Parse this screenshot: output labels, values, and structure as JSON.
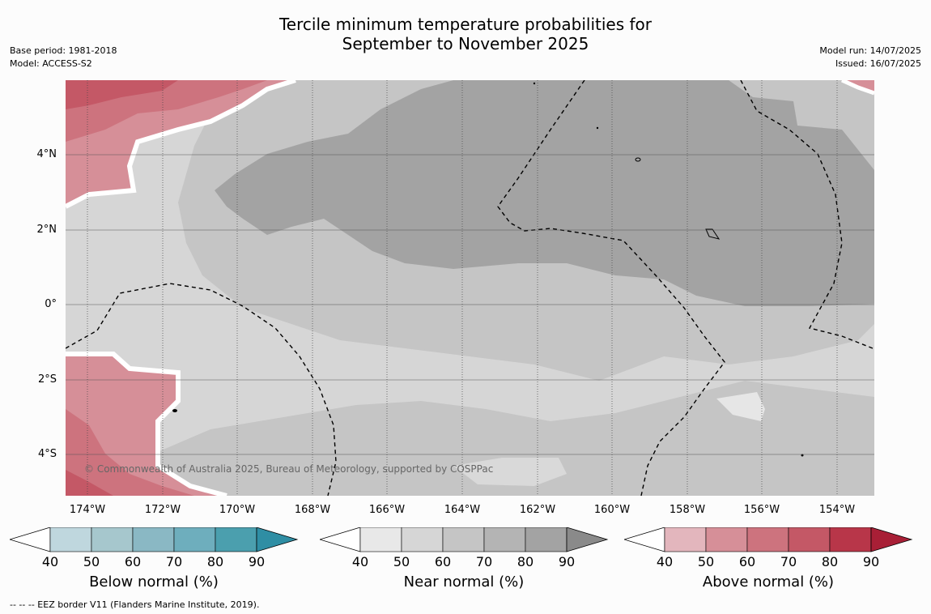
{
  "title_line1": "Tercile minimum temperature probabilities for",
  "title_line2": "September to November 2025",
  "meta_left": {
    "base_period": "Base period: 1981-2018",
    "model": "Model: ACCESS-S2"
  },
  "meta_right": {
    "model_run": "Model run: 14/07/2025",
    "issued": "Issued: 16/07/2025"
  },
  "lat_labels": [
    "4°N",
    "2°N",
    "0°",
    "2°S",
    "4°S"
  ],
  "lon_labels": [
    "174°W",
    "172°W",
    "170°W",
    "168°W",
    "166°W",
    "164°W",
    "162°W",
    "160°W",
    "158°W",
    "156°W",
    "154°W"
  ],
  "copyright": "© Commonwealth of Australia 2025, Bureau of Meteorology, supported by COSPPac",
  "footnote": "--  --  -- EEZ border V11 (Flanders Marine Institute, 2019).",
  "colorbars": [
    {
      "label": "Below normal (%)",
      "ticks": [
        "40",
        "50",
        "60",
        "70",
        "80",
        "90"
      ],
      "colors": [
        "#bfd7de",
        "#a6c7cd",
        "#8ab8c4",
        "#6eaebd",
        "#4b9fae",
        "#2f8ea4"
      ]
    },
    {
      "label": "Near normal (%)",
      "ticks": [
        "40",
        "50",
        "60",
        "70",
        "80",
        "90"
      ],
      "colors": [
        "#e8e8e8",
        "#d6d6d6",
        "#c5c5c5",
        "#b4b4b4",
        "#a3a3a3",
        "#8a8a8a"
      ]
    },
    {
      "label": "Above normal (%)",
      "ticks": [
        "40",
        "50",
        "60",
        "70",
        "80",
        "90"
      ],
      "colors": [
        "#e3b6bd",
        "#d68f98",
        "#cd737e",
        "#c45866",
        "#b83649",
        "#a81f36"
      ]
    }
  ]
}
